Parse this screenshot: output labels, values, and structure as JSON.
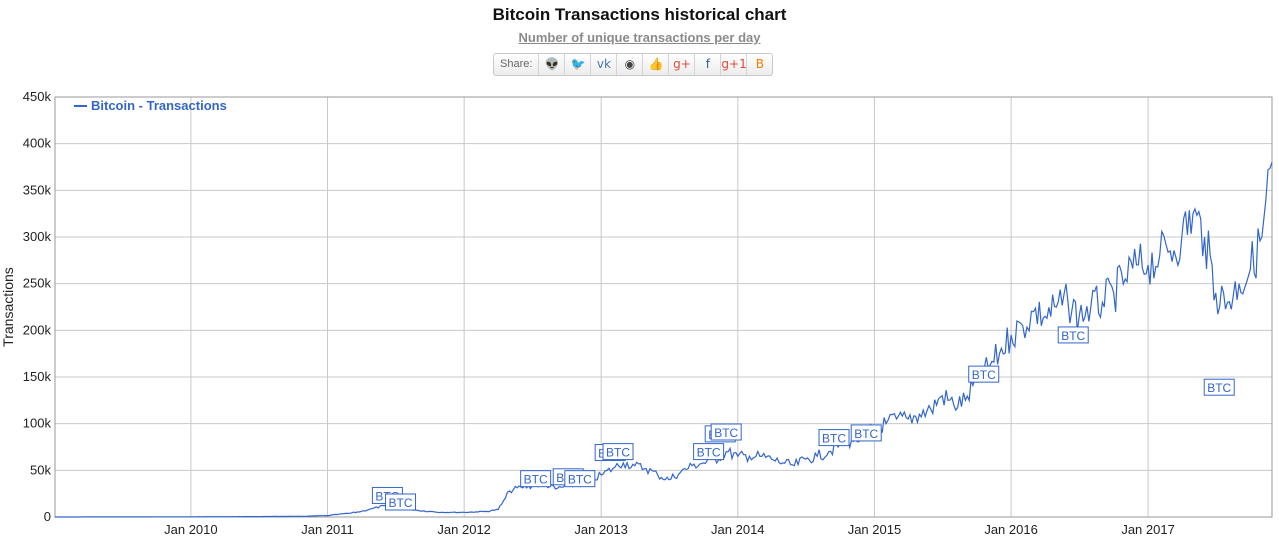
{
  "header": {
    "title": "Bitcoin Transactions historical chart",
    "subtitle": "Number of unique transactions per day"
  },
  "share": {
    "label": "Share:",
    "buttons": [
      {
        "icon": "reddit-icon",
        "glyph": "👽",
        "color": "#555555"
      },
      {
        "icon": "twitter-icon",
        "glyph": "🐦",
        "color": "#1da1f2"
      },
      {
        "icon": "vk-icon",
        "glyph": "vk",
        "color": "#4a76a8"
      },
      {
        "icon": "weibo-icon",
        "glyph": "◉",
        "color": "#444444"
      },
      {
        "icon": "like-icon",
        "glyph": "👍",
        "color": "#3b5998"
      },
      {
        "icon": "google-plus-icon",
        "glyph": "g+",
        "color": "#dd4b39"
      },
      {
        "icon": "facebook-icon",
        "glyph": "f",
        "color": "#3b5998"
      },
      {
        "icon": "google-plus-one-icon",
        "glyph": "g+1",
        "color": "#dd4b39"
      },
      {
        "icon": "blogger-icon",
        "glyph": "B",
        "color": "#f57d00"
      }
    ]
  },
  "chart_data": {
    "type": "line",
    "title": "Bitcoin Transactions historical chart",
    "subtitle": "Number of unique transactions per day",
    "ylabel": "Transactions",
    "xlabel": "",
    "ylim": [
      0,
      450000
    ],
    "x_range": [
      "2009-01-03",
      "2017-11-28"
    ],
    "y_ticks": [
      0,
      50000,
      100000,
      150000,
      200000,
      250000,
      300000,
      350000,
      400000,
      450000
    ],
    "y_tick_labels": [
      "0",
      "50k",
      "100k",
      "150k",
      "200k",
      "250k",
      "300k",
      "350k",
      "400k",
      "450k"
    ],
    "x_ticks": [
      "2010-01-01",
      "2011-01-01",
      "2012-01-01",
      "2013-01-01",
      "2014-01-01",
      "2015-01-01",
      "2016-01-01",
      "2017-01-01"
    ],
    "x_tick_labels": [
      "Jan 2010",
      "Jan 2011",
      "Jan 2012",
      "Jan 2013",
      "Jan 2014",
      "Jan 2015",
      "Jan 2016",
      "Jan 2017"
    ],
    "grid": true,
    "legend_position": "top-left",
    "series_color": "#3366cc",
    "series": [
      {
        "name": "Bitcoin - Transactions",
        "points": [
          [
            "2009-01-03",
            0
          ],
          [
            "2009-06-01",
            100
          ],
          [
            "2009-12-01",
            200
          ],
          [
            "2010-03-01",
            300
          ],
          [
            "2010-06-01",
            400
          ],
          [
            "2010-09-01",
            600
          ],
          [
            "2010-11-01",
            800
          ],
          [
            "2011-01-01",
            1500
          ],
          [
            "2011-02-01",
            3000
          ],
          [
            "2011-03-01",
            4000
          ],
          [
            "2011-04-01",
            6000
          ],
          [
            "2011-05-01",
            9000
          ],
          [
            "2011-06-01",
            12000
          ],
          [
            "2011-06-20",
            13000
          ],
          [
            "2011-07-10",
            11000
          ],
          [
            "2011-08-01",
            9000
          ],
          [
            "2011-09-01",
            7000
          ],
          [
            "2011-10-01",
            6000
          ],
          [
            "2011-11-01",
            5000
          ],
          [
            "2011-12-01",
            5000
          ],
          [
            "2012-01-01",
            5000
          ],
          [
            "2012-02-01",
            5500
          ],
          [
            "2012-03-01",
            6000
          ],
          [
            "2012-04-01",
            8000
          ],
          [
            "2012-04-20",
            20000
          ],
          [
            "2012-05-01",
            28000
          ],
          [
            "2012-06-01",
            32000
          ],
          [
            "2012-07-01",
            33000
          ],
          [
            "2012-08-01",
            36000
          ],
          [
            "2012-09-01",
            30000
          ],
          [
            "2012-10-01",
            33000
          ],
          [
            "2012-11-01",
            35000
          ],
          [
            "2012-12-01",
            38000
          ],
          [
            "2013-01-01",
            45000
          ],
          [
            "2013-02-01",
            52000
          ],
          [
            "2013-03-01",
            58000
          ],
          [
            "2013-04-01",
            55000
          ],
          [
            "2013-05-01",
            52000
          ],
          [
            "2013-06-01",
            45000
          ],
          [
            "2013-07-01",
            40000
          ],
          [
            "2013-08-01",
            48000
          ],
          [
            "2013-09-01",
            55000
          ],
          [
            "2013-10-01",
            58000
          ],
          [
            "2013-11-01",
            62000
          ],
          [
            "2013-12-01",
            70000
          ],
          [
            "2014-01-01",
            65000
          ],
          [
            "2014-02-01",
            65000
          ],
          [
            "2014-03-01",
            65000
          ],
          [
            "2014-04-01",
            62000
          ],
          [
            "2014-05-01",
            58000
          ],
          [
            "2014-06-01",
            55000
          ],
          [
            "2014-07-01",
            62000
          ],
          [
            "2014-08-01",
            65000
          ],
          [
            "2014-09-01",
            70000
          ],
          [
            "2014-10-01",
            78000
          ],
          [
            "2014-11-01",
            82000
          ],
          [
            "2014-12-01",
            85000
          ],
          [
            "2015-01-01",
            95000
          ],
          [
            "2015-02-01",
            100000
          ],
          [
            "2015-03-01",
            105000
          ],
          [
            "2015-04-01",
            105000
          ],
          [
            "2015-05-01",
            110000
          ],
          [
            "2015-06-01",
            115000
          ],
          [
            "2015-07-01",
            130000
          ],
          [
            "2015-08-01",
            120000
          ],
          [
            "2015-09-01",
            125000
          ],
          [
            "2015-10-01",
            145000
          ],
          [
            "2015-11-01",
            160000
          ],
          [
            "2015-12-01",
            175000
          ],
          [
            "2016-01-01",
            195000
          ],
          [
            "2016-02-01",
            205000
          ],
          [
            "2016-03-01",
            220000
          ],
          [
            "2016-04-01",
            215000
          ],
          [
            "2016-05-01",
            225000
          ],
          [
            "2016-06-01",
            230000
          ],
          [
            "2016-07-01",
            215000
          ],
          [
            "2016-08-01",
            225000
          ],
          [
            "2016-09-01",
            230000
          ],
          [
            "2016-10-01",
            240000
          ],
          [
            "2016-11-01",
            255000
          ],
          [
            "2016-12-01",
            270000
          ],
          [
            "2017-01-01",
            270000
          ],
          [
            "2017-02-01",
            280000
          ],
          [
            "2017-03-01",
            285000
          ],
          [
            "2017-04-01",
            300000
          ],
          [
            "2017-05-01",
            325000
          ],
          [
            "2017-06-01",
            300000
          ],
          [
            "2017-07-01",
            240000
          ],
          [
            "2017-08-01",
            230000
          ],
          [
            "2017-09-01",
            250000
          ],
          [
            "2017-10-01",
            265000
          ],
          [
            "2017-11-01",
            300000
          ],
          [
            "2017-11-28",
            380000
          ]
        ]
      }
    ],
    "annotations": [
      {
        "label": "BTC",
        "date": "2011-06-10",
        "value": 22000
      },
      {
        "label": "BTC",
        "date": "2011-07-15",
        "value": 15000
      },
      {
        "label": "BTC",
        "date": "2012-07-10",
        "value": 40000
      },
      {
        "label": "BTC",
        "date": "2012-10-05",
        "value": 42000
      },
      {
        "label": "BTC",
        "date": "2012-11-05",
        "value": 40000
      },
      {
        "label": "BTC",
        "date": "2013-01-25",
        "value": 68000
      },
      {
        "label": "BTC",
        "date": "2013-02-15",
        "value": 69000
      },
      {
        "label": "BTC",
        "date": "2013-10-15",
        "value": 69000
      },
      {
        "label": "BTC",
        "date": "2013-11-15",
        "value": 88000
      },
      {
        "label": "BTC",
        "date": "2013-12-01",
        "value": 90000
      },
      {
        "label": "BTC",
        "date": "2014-09-15",
        "value": 84000
      },
      {
        "label": "BTC",
        "date": "2014-12-10",
        "value": 89000
      },
      {
        "label": "BTC",
        "date": "2015-10-20",
        "value": 152000
      },
      {
        "label": "BTC",
        "date": "2016-06-15",
        "value": 194000
      },
      {
        "label": "BTC",
        "date": "2017-07-10",
        "value": 138000
      }
    ]
  }
}
